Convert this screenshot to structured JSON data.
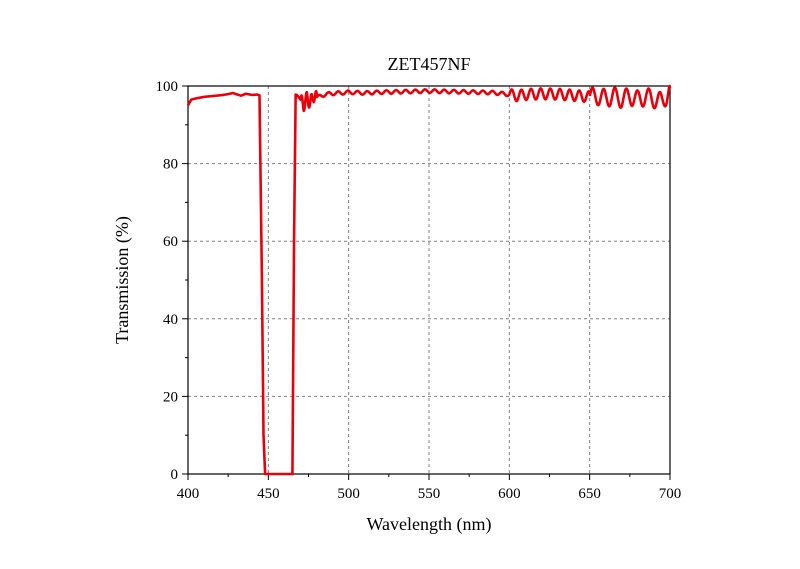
{
  "chart_data": {
    "type": "line",
    "title": "ZET457NF",
    "xlabel": "Wavelength (nm)",
    "ylabel": "Transmission (%)",
    "xlim": [
      400,
      700
    ],
    "ylim": [
      0,
      100
    ],
    "xticks": [
      400,
      450,
      500,
      550,
      600,
      650,
      700
    ],
    "yticks": [
      0,
      20,
      40,
      60,
      80,
      100
    ],
    "grid": true,
    "grid_style": "dashed",
    "series": [
      {
        "color": "#e8000b",
        "x": [
          400,
          402,
          405,
          410,
          415,
          420,
          425,
          428,
          430,
          433,
          436,
          440,
          443,
          444.5,
          446,
          447,
          448,
          465,
          466,
          467,
          468,
          470,
          472,
          474,
          476,
          478,
          480,
          485,
          490,
          495,
          500,
          505,
          510,
          520,
          530,
          540,
          550,
          560,
          570,
          580,
          590,
          600,
          605,
          610,
          620,
          630,
          640,
          650,
          655,
          660,
          665,
          670,
          675,
          680,
          685,
          690,
          695,
          698,
          700
        ],
        "y": [
          95,
          96.5,
          96.8,
          97.2,
          97.4,
          97.6,
          97.9,
          98.2,
          97.9,
          97.5,
          98,
          97.7,
          97.8,
          97.6,
          50,
          10,
          0,
          0,
          60,
          97.8,
          97.6,
          96.5,
          95,
          97,
          95.5,
          97.5,
          97,
          97.8,
          98.1,
          98.2,
          98.4,
          98.3,
          98.2,
          98.4,
          98.5,
          98.6,
          98.7,
          98.6,
          98.5,
          98.4,
          98.3,
          97.8,
          97.5,
          97.8,
          98,
          97.9,
          97.6,
          97.2,
          97.4,
          96.8,
          97.4,
          96.6,
          97.4,
          96.5,
          97.3,
          96.6,
          96,
          97.5,
          99.4
        ],
        "ripple": [
          {
            "from": 470,
            "to": 480,
            "amplitude": 1.6,
            "period": 3
          },
          {
            "from": 480,
            "to": 600,
            "amplitude": 0.45,
            "period": 6
          },
          {
            "from": 600,
            "to": 650,
            "amplitude": 1.4,
            "period": 6
          },
          {
            "from": 650,
            "to": 700,
            "amplitude": 2.3,
            "period": 7
          }
        ]
      }
    ]
  }
}
